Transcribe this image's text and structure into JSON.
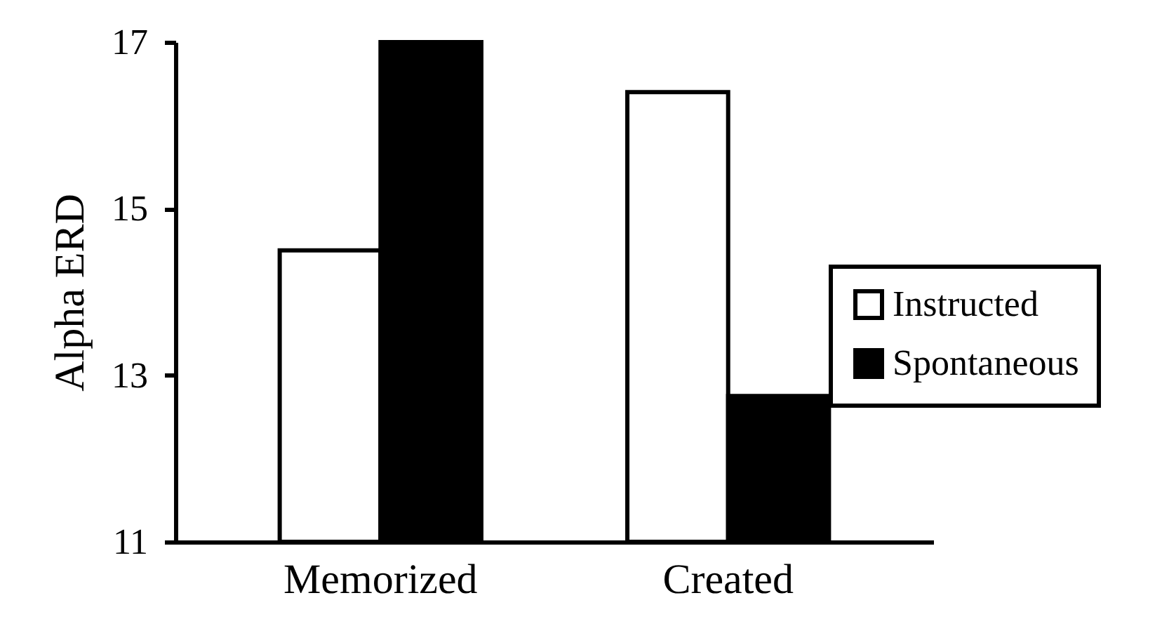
{
  "chart_data": {
    "type": "bar",
    "ylabel": "Alpha ERD",
    "categories": [
      "Memorized",
      "Created"
    ],
    "series": [
      {
        "name": "Instructed",
        "color": "#ffffff",
        "values": [
          14.5,
          16.4
        ]
      },
      {
        "name": "Spontaneous",
        "color": "#000000",
        "values": [
          17,
          12.75
        ]
      }
    ],
    "ylim": [
      11,
      17
    ],
    "yticks": [
      11,
      13,
      15,
      17
    ],
    "grid": false,
    "legend": "right"
  }
}
